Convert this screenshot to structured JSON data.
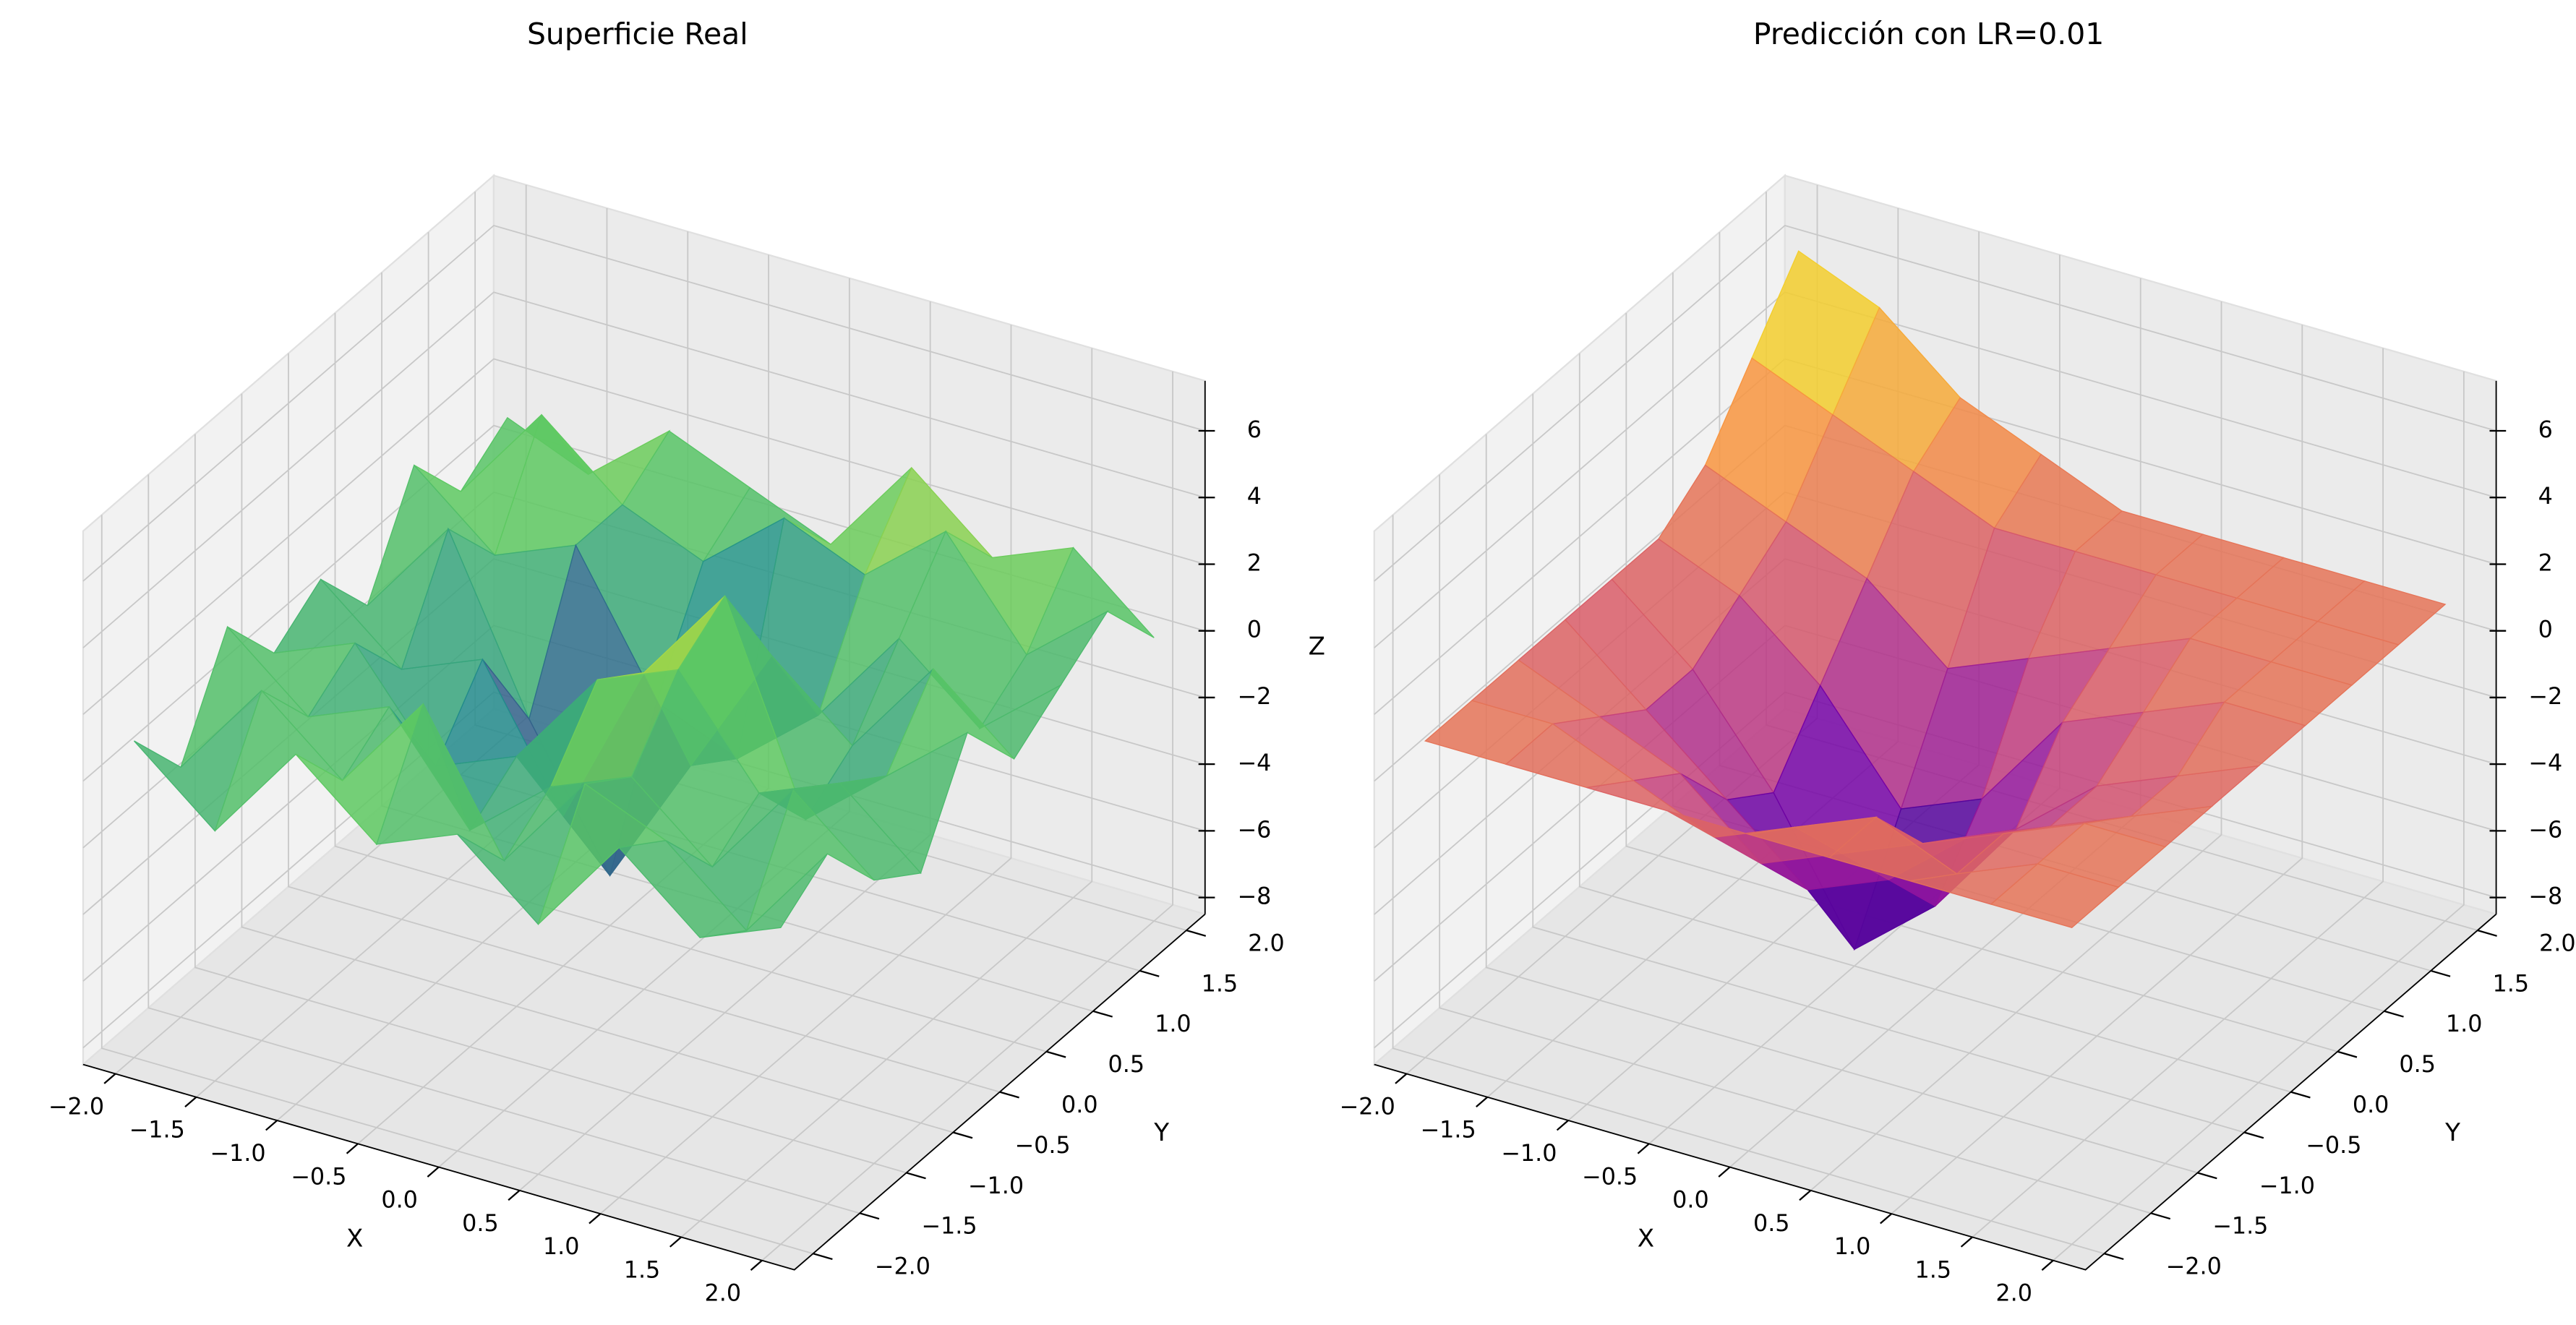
{
  "chart_data": [
    {
      "type": "surface",
      "title": "Superficie Real",
      "colormap": "viridis",
      "xlabel": "X",
      "ylabel": "Y",
      "zlabel": "Z",
      "x": [
        -2,
        -1.5,
        -1,
        -0.5,
        0,
        0.5,
        1,
        1.5,
        2
      ],
      "y": [
        -2,
        -1.5,
        -1,
        -0.5,
        0,
        0.5,
        1,
        1.5,
        2
      ],
      "z": [
        [
          1,
          -1,
          2,
          0,
          1,
          -1,
          2,
          0,
          1
        ],
        [
          -1,
          2,
          0,
          3,
          -1,
          2,
          1,
          -1,
          2
        ],
        [
          2,
          0,
          1,
          -2,
          0,
          1,
          -1,
          2,
          0
        ],
        [
          0,
          1,
          -2,
          -1,
          2,
          3,
          0,
          1,
          -1
        ],
        [
          1,
          -1,
          0,
          -4,
          1,
          4,
          -2,
          0,
          2
        ],
        [
          -1,
          2,
          -3,
          -7,
          -3,
          1,
          -1,
          2,
          0
        ],
        [
          2,
          0,
          1,
          -3,
          -4,
          -2,
          1,
          -1,
          1
        ],
        [
          0,
          3,
          1,
          0,
          2,
          1,
          3,
          0,
          2
        ],
        [
          1,
          0,
          2,
          1,
          0,
          3,
          1,
          2,
          0
        ]
      ],
      "xlim": [
        -2.2,
        2.2
      ],
      "ylim": [
        -2.2,
        2.2
      ],
      "zlim": [
        -8.5,
        7.5
      ],
      "xticks": [
        {
          "value": -2,
          "label": "−2.0"
        },
        {
          "value": -1.5,
          "label": "−1.5"
        },
        {
          "value": -1,
          "label": "−1.0"
        },
        {
          "value": -0.5,
          "label": "−0.5"
        },
        {
          "value": 0,
          "label": "0.0"
        },
        0.5,
        {
          "value": 1,
          "label": "1.0"
        },
        1.5,
        {
          "value": 2,
          "label": "2.0"
        }
      ],
      "yticks": [
        {
          "value": -2,
          "label": "−2.0"
        },
        {
          "value": -1.5,
          "label": "−1.5"
        },
        {
          "value": -1,
          "label": "−1.0"
        },
        {
          "value": -0.5,
          "label": "−0.5"
        },
        {
          "value": 0,
          "label": "0.0"
        },
        0.5,
        {
          "value": 1,
          "label": "1.0"
        },
        1.5,
        {
          "value": 2,
          "label": "2.0"
        }
      ],
      "zticks": [
        {
          "value": -8,
          "label": "−8"
        },
        {
          "value": -6,
          "label": "−6"
        },
        {
          "value": -4,
          "label": "−4"
        },
        {
          "value": -2,
          "label": "−2"
        },
        0,
        2,
        4,
        6
      ]
    },
    {
      "type": "surface",
      "title": "Predicción con LR=0.01",
      "colormap": "plasma",
      "xlabel": "X",
      "ylabel": "Y",
      "zlabel": "Z",
      "x": [
        -2,
        -1.5,
        -1,
        -0.5,
        0,
        0.5,
        1,
        1.5,
        2
      ],
      "y": [
        -2,
        -1.5,
        -1,
        -0.5,
        0,
        0.5,
        1,
        1.5,
        2
      ],
      "z": [
        [
          1,
          1,
          1,
          1,
          1,
          1,
          1,
          1,
          1
        ],
        [
          1,
          1,
          0,
          -1,
          0,
          1,
          0,
          1,
          1
        ],
        [
          1,
          0,
          -1,
          -3,
          -2,
          -1,
          0,
          1,
          1
        ],
        [
          1,
          -1,
          -3,
          -5,
          -4,
          -2,
          -1,
          0,
          1
        ],
        [
          1,
          -1,
          -4,
          -8,
          -6,
          -3,
          -1,
          0,
          1
        ],
        [
          1,
          0,
          -2,
          -5,
          -4,
          -1,
          0,
          1,
          1
        ],
        [
          2,
          1,
          0,
          -2,
          -1,
          0,
          1,
          1,
          1
        ],
        [
          4,
          3,
          2,
          1,
          1,
          1,
          1,
          1,
          1
        ],
        [
          6,
          5,
          3,
          2,
          1,
          1,
          1,
          1,
          1
        ]
      ],
      "xlim": [
        -2.2,
        2.2
      ],
      "ylim": [
        -2.2,
        2.2
      ],
      "zlim": [
        -8.5,
        7.5
      ],
      "xticks": [
        {
          "value": -2,
          "label": "−2.0"
        },
        {
          "value": -1.5,
          "label": "−1.5"
        },
        {
          "value": -1,
          "label": "−1.0"
        },
        {
          "value": -0.5,
          "label": "−0.5"
        },
        {
          "value": 0,
          "label": "0.0"
        },
        0.5,
        {
          "value": 1,
          "label": "1.0"
        },
        1.5,
        {
          "value": 2,
          "label": "2.0"
        }
      ],
      "yticks": [
        {
          "value": -2,
          "label": "−2.0"
        },
        {
          "value": -1.5,
          "label": "−1.5"
        },
        {
          "value": -1,
          "label": "−1.0"
        },
        {
          "value": -0.5,
          "label": "−0.5"
        },
        {
          "value": 0,
          "label": "0.0"
        },
        0.5,
        {
          "value": 1,
          "label": "1.0"
        },
        1.5,
        {
          "value": 2,
          "label": "2.0"
        }
      ],
      "zticks": [
        {
          "value": -8,
          "label": "−8"
        },
        {
          "value": -6,
          "label": "−6"
        },
        {
          "value": -4,
          "label": "−4"
        },
        {
          "value": -2,
          "label": "−2"
        },
        0,
        2,
        4,
        6
      ]
    }
  ]
}
